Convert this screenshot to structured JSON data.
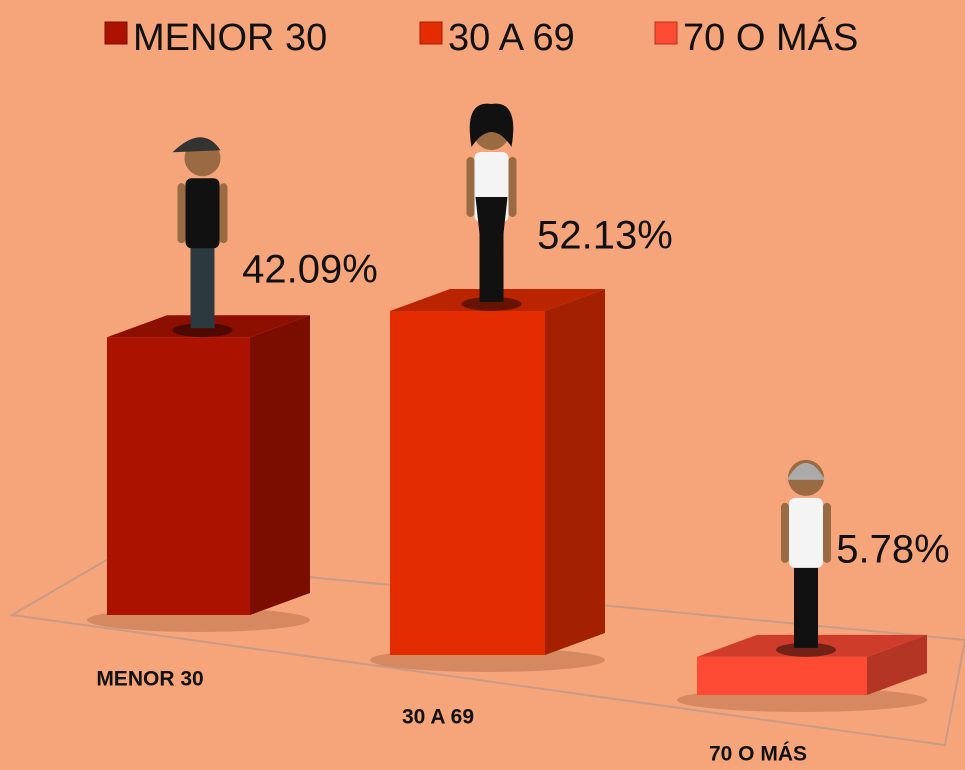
{
  "chart_data": {
    "type": "bar3d",
    "categories": [
      "MENOR 30",
      "30 A 69",
      "70 O MÁS"
    ],
    "values": [
      42.09,
      52.13,
      5.78
    ],
    "value_labels": [
      "42.09%",
      "52.13%",
      "5.78%"
    ],
    "colors": [
      "#ab1200",
      "#e32c00",
      "#fc4a33"
    ]
  }
}
